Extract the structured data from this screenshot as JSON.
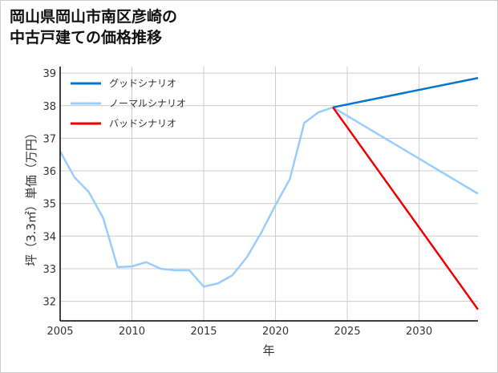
{
  "chart_data": {
    "type": "line",
    "title_lines": [
      "岡山県岡山市南区彦崎の",
      "中古戸建ての価格推移"
    ],
    "xlabel": "年",
    "ylabel": "坪（3.3㎡）単価（万円）",
    "xlim": [
      2005,
      2034.1
    ],
    "ylim": [
      31.4,
      39.2
    ],
    "xticks": [
      2005,
      2010,
      2015,
      2020,
      2025,
      2030
    ],
    "yticks": [
      32,
      33,
      34,
      35,
      36,
      37,
      38,
      39
    ],
    "grid": true,
    "legend_position": "top-left",
    "series": [
      {
        "name": "ノーマルシナリオ",
        "color": "#99ccff",
        "legend": false,
        "x": [
          2005,
          2006,
          2007,
          2008,
          2009,
          2010,
          2011,
          2012,
          2013,
          2014,
          2015,
          2016,
          2017,
          2018,
          2019,
          2020,
          2021,
          2022,
          2023,
          2024
        ],
        "y": [
          36.6,
          35.8,
          35.35,
          34.55,
          33.05,
          33.07,
          33.2,
          33.0,
          32.95,
          32.95,
          32.45,
          32.55,
          32.8,
          33.35,
          34.1,
          34.95,
          35.75,
          37.47,
          37.8,
          37.95
        ]
      },
      {
        "name": "グッドシナリオ",
        "color": "#0077cc",
        "legend": true,
        "x": [
          2024,
          2034.1
        ],
        "y": [
          37.95,
          38.85
        ]
      },
      {
        "name": "ノーマルシナリオ",
        "color": "#99ccff",
        "legend": true,
        "x": [
          2024,
          2034.1
        ],
        "y": [
          37.95,
          35.3
        ]
      },
      {
        "name": "バッドシナリオ",
        "color": "#ee0000",
        "legend": true,
        "x": [
          2024,
          2034.1
        ],
        "y": [
          37.95,
          31.75
        ]
      }
    ]
  }
}
